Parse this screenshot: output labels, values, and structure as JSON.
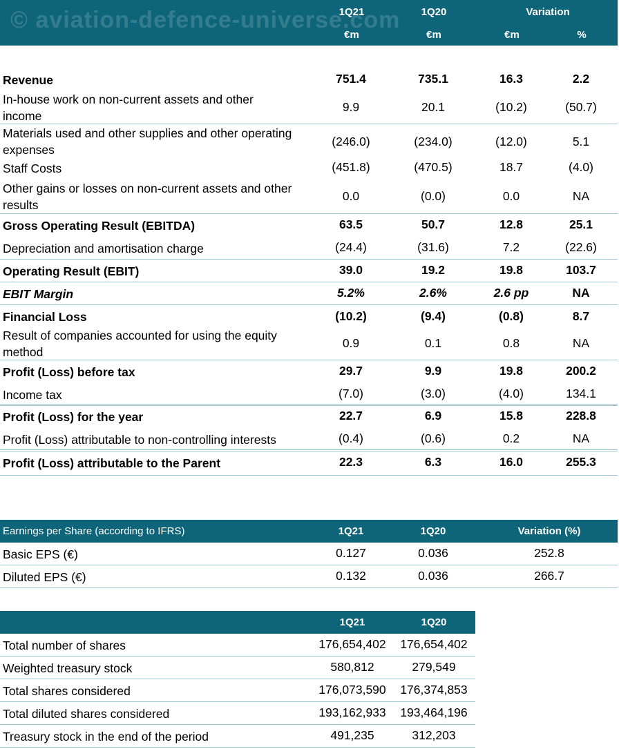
{
  "watermark": "© aviation-defence-universe.com",
  "pl": {
    "headers": {
      "c1_top": "1Q21",
      "c2_top": "1Q20",
      "variation": "Variation",
      "c1_unit": "€m",
      "c2_unit": "€m",
      "c3_unit": "€m",
      "c4_unit": "%"
    },
    "rows": [
      {
        "label": "Revenue",
        "v1": "751.4",
        "v2": "735.1",
        "v3": "16.3",
        "v4": "2.2"
      },
      {
        "label": "In-house work on non-current assets and other income",
        "v1": "9.9",
        "v2": "20.1",
        "v3": "(10.2)",
        "v4": "(50.7)"
      },
      {
        "label": "Materials used and other supplies and other operating expenses",
        "v1": "(246.0)",
        "v2": "(234.0)",
        "v3": "(12.0)",
        "v4": "5.1"
      },
      {
        "label": "Staff Costs",
        "v1": "(451.8)",
        "v2": "(470.5)",
        "v3": "18.7",
        "v4": "(4.0)"
      },
      {
        "label": "Other gains or losses on non-current assets and other results",
        "v1": "0.0",
        "v2": "(0.0)",
        "v3": "0.0",
        "v4": "NA"
      },
      {
        "label": "Gross Operating Result (EBITDA)",
        "v1": "63.5",
        "v2": "50.7",
        "v3": "12.8",
        "v4": "25.1"
      },
      {
        "label": "Depreciation and amortisation charge",
        "v1": "(24.4)",
        "v2": "(31.6)",
        "v3": "7.2",
        "v4": "(22.6)"
      },
      {
        "label": "Operating Result (EBIT)",
        "v1": "39.0",
        "v2": "19.2",
        "v3": "19.8",
        "v4": "103.7"
      },
      {
        "label": "EBIT Margin",
        "v1": "5.2%",
        "v2": "2.6%",
        "v3": "2.6 pp",
        "v4": "NA"
      },
      {
        "label": "Financial Loss",
        "v1": "(10.2)",
        "v2": "(9.4)",
        "v3": "(0.8)",
        "v4": "8.7"
      },
      {
        "label": "Result of companies accounted for using the equity method",
        "v1": "0.9",
        "v2": "0.1",
        "v3": "0.8",
        "v4": "NA"
      },
      {
        "label": "Profit (Loss) before tax",
        "v1": "29.7",
        "v2": "9.9",
        "v3": "19.8",
        "v4": "200.2"
      },
      {
        "label": "Income tax",
        "v1": "(7.0)",
        "v2": "(3.0)",
        "v3": "(4.0)",
        "v4": "134.1"
      },
      {
        "label": "Profit (Loss) for the year",
        "v1": "22.7",
        "v2": "6.9",
        "v3": "15.8",
        "v4": "228.8"
      },
      {
        "label": "Profit (Loss) attributable to non-controlling interests",
        "v1": "(0.4)",
        "v2": "(0.6)",
        "v3": "0.2",
        "v4": "NA"
      },
      {
        "label": "Profit (Loss) attributable to the Parent",
        "v1": "22.3",
        "v2": "6.3",
        "v3": "16.0",
        "v4": "255.3"
      }
    ]
  },
  "eps": {
    "title": "Earnings per Share (according to IFRS)",
    "h1": "1Q21",
    "h2": "1Q20",
    "h3": "Variation (%)",
    "rows": [
      {
        "label": "Basic EPS (€)",
        "v1": "0.127",
        "v2": "0.036",
        "v3": "252.8"
      },
      {
        "label": "Diluted EPS (€)",
        "v1": "0.132",
        "v2": "0.036",
        "v3": "266.7"
      }
    ]
  },
  "shares": {
    "h1": "1Q21",
    "h2": "1Q20",
    "rows": [
      {
        "label": "Total number of shares",
        "v1": "176,654,402",
        "v2": "176,654,402"
      },
      {
        "label": "Weighted treasury stock",
        "v1": "580,812",
        "v2": "279,549"
      },
      {
        "label": "Total shares considered",
        "v1": "176,073,590",
        "v2": "176,374,853"
      },
      {
        "label": "Total diluted shares considered",
        "v1": "193,162,933",
        "v2": "193,464,196"
      },
      {
        "label": "Treasury stock in the end of the period",
        "v1": "491,235",
        "v2": "312,203"
      }
    ]
  }
}
